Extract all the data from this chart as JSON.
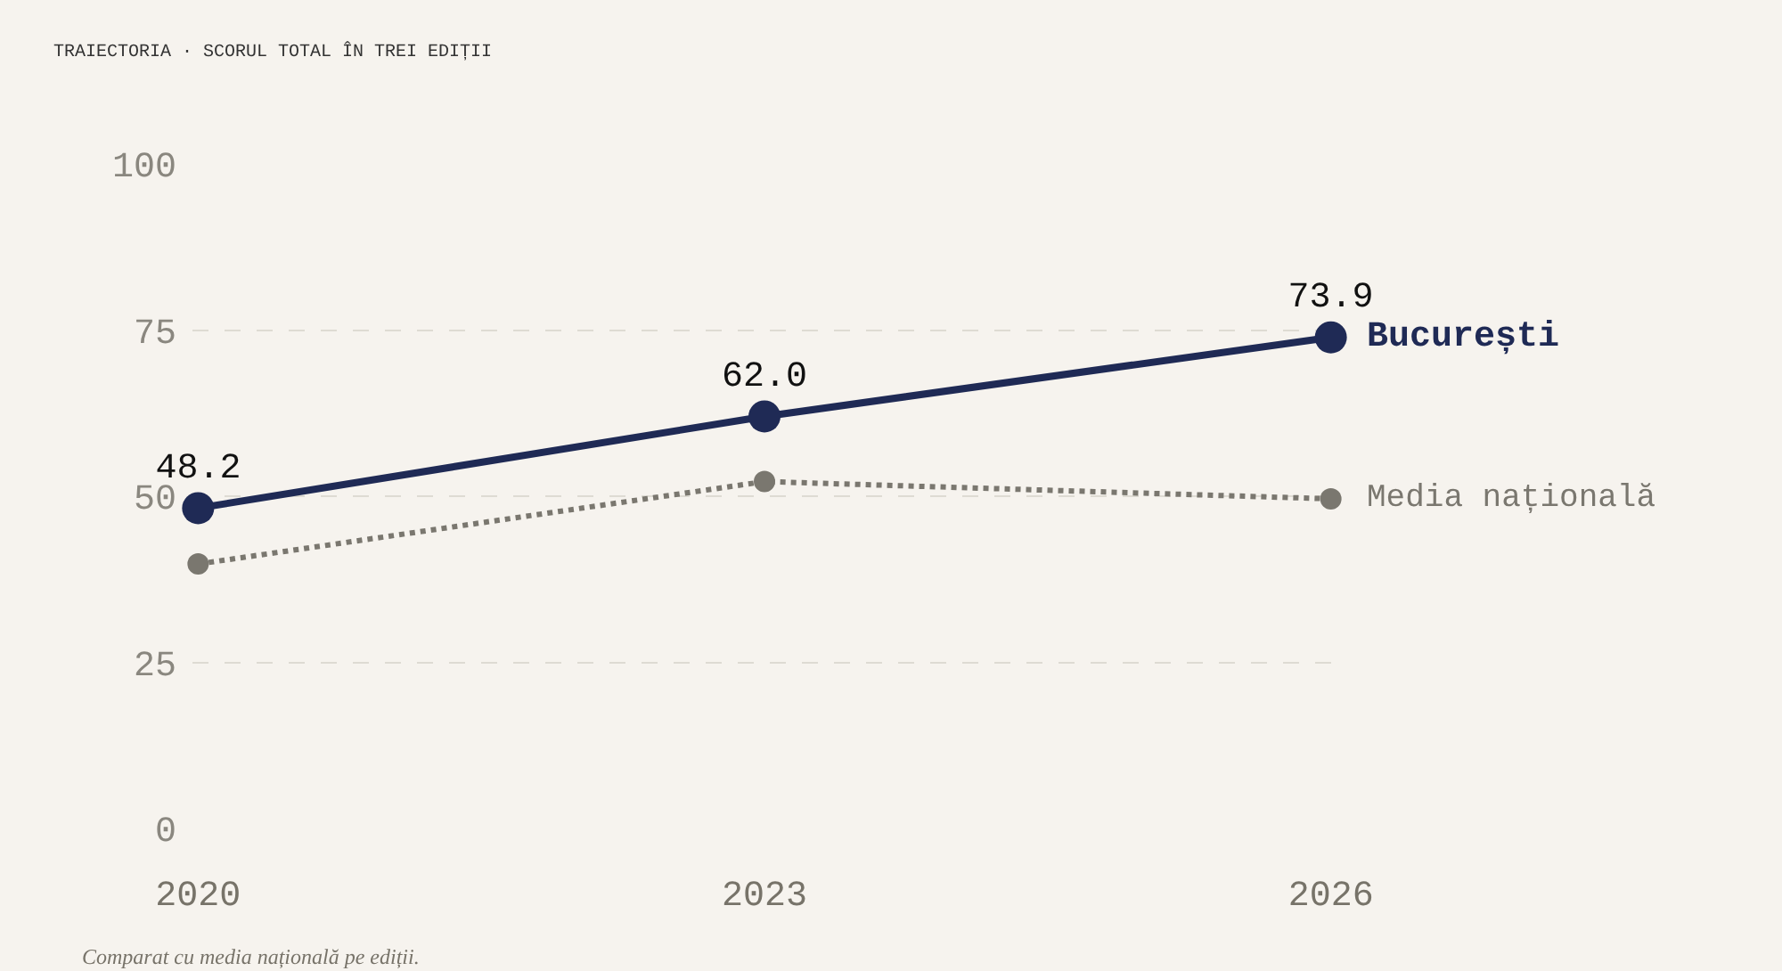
{
  "chart_data": {
    "type": "line",
    "title": "TRAIECTORIA · SCORUL TOTAL ÎN TREI EDIȚII",
    "categories": [
      "2020",
      "2023",
      "2026"
    ],
    "series": [
      {
        "name": "București",
        "color": "#1f2a55",
        "values": [
          48.2,
          62.0,
          73.9
        ],
        "value_labels": [
          "48.2",
          "62.0",
          "73.9"
        ],
        "line_style": "solid"
      },
      {
        "name": "Media națională",
        "color": "#7a776f",
        "values": [
          39.8,
          52.2,
          49.6
        ],
        "line_style": "dotted"
      }
    ],
    "ylim": [
      0,
      100
    ],
    "yticks": [
      0,
      25,
      50,
      75,
      100
    ],
    "grid": "y",
    "marker": "circle",
    "legend": false,
    "annotations": [
      "Comparat cu media națională pe ediții."
    ]
  }
}
